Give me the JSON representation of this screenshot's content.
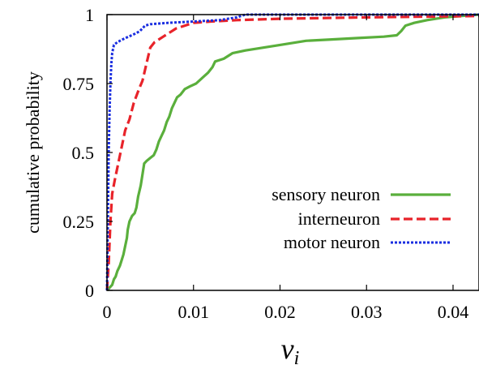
{
  "chart_data": {
    "type": "line",
    "title": "",
    "xlabel": "v",
    "xlabel_subscript": "i",
    "ylabel": "cumulative probability",
    "xlim": [
      0,
      0.043
    ],
    "ylim": [
      0,
      1
    ],
    "xticks": [
      0,
      0.01,
      0.02,
      0.03,
      0.04
    ],
    "xtick_labels": [
      "0",
      "0.01",
      "0.02",
      "0.03",
      "0.04"
    ],
    "yticks": [
      0,
      0.25,
      0.5,
      0.75,
      1
    ],
    "ytick_labels": [
      "0",
      "0.25",
      "0.5",
      "0.75",
      "1"
    ],
    "grid": false,
    "legend_position": "right",
    "series": [
      {
        "name": "sensory neuron",
        "color": "#5aaf3c",
        "style": "solid",
        "points": [
          [
            0.0,
            0.0
          ],
          [
            0.0003,
            0.01
          ],
          [
            0.0006,
            0.02
          ],
          [
            0.0008,
            0.04
          ],
          [
            0.001,
            0.05
          ],
          [
            0.0012,
            0.07
          ],
          [
            0.0015,
            0.09
          ],
          [
            0.0017,
            0.11
          ],
          [
            0.0019,
            0.13
          ],
          [
            0.0021,
            0.16
          ],
          [
            0.0023,
            0.19
          ],
          [
            0.0024,
            0.22
          ],
          [
            0.0026,
            0.25
          ],
          [
            0.0029,
            0.27
          ],
          [
            0.0032,
            0.28
          ],
          [
            0.0034,
            0.3
          ],
          [
            0.0036,
            0.34
          ],
          [
            0.0039,
            0.38
          ],
          [
            0.0041,
            0.42
          ],
          [
            0.0043,
            0.46
          ],
          [
            0.0046,
            0.47
          ],
          [
            0.005,
            0.48
          ],
          [
            0.0054,
            0.49
          ],
          [
            0.0057,
            0.51
          ],
          [
            0.006,
            0.54
          ],
          [
            0.0063,
            0.56
          ],
          [
            0.0066,
            0.58
          ],
          [
            0.0069,
            0.61
          ],
          [
            0.0072,
            0.63
          ],
          [
            0.0075,
            0.66
          ],
          [
            0.0078,
            0.68
          ],
          [
            0.0081,
            0.7
          ],
          [
            0.0085,
            0.71
          ],
          [
            0.009,
            0.73
          ],
          [
            0.0096,
            0.74
          ],
          [
            0.0103,
            0.75
          ],
          [
            0.011,
            0.77
          ],
          [
            0.0117,
            0.79
          ],
          [
            0.0122,
            0.81
          ],
          [
            0.0125,
            0.83
          ],
          [
            0.0135,
            0.84
          ],
          [
            0.0145,
            0.86
          ],
          [
            0.016,
            0.87
          ],
          [
            0.018,
            0.88
          ],
          [
            0.02,
            0.89
          ],
          [
            0.023,
            0.905
          ],
          [
            0.026,
            0.91
          ],
          [
            0.029,
            0.915
          ],
          [
            0.032,
            0.92
          ],
          [
            0.0335,
            0.925
          ],
          [
            0.034,
            0.94
          ],
          [
            0.0345,
            0.96
          ],
          [
            0.0355,
            0.97
          ],
          [
            0.037,
            0.98
          ],
          [
            0.039,
            0.99
          ],
          [
            0.041,
            0.995
          ],
          [
            0.043,
            1.0
          ]
        ]
      },
      {
        "name": "interneuron",
        "color": "#e8232a",
        "style": "dashed",
        "points": [
          [
            0.0,
            0.0
          ],
          [
            0.0002,
            0.1
          ],
          [
            0.0004,
            0.25
          ],
          [
            0.0006,
            0.35
          ],
          [
            0.0009,
            0.4
          ],
          [
            0.0013,
            0.46
          ],
          [
            0.0017,
            0.52
          ],
          [
            0.0021,
            0.58
          ],
          [
            0.0026,
            0.62
          ],
          [
            0.0031,
            0.68
          ],
          [
            0.0037,
            0.73
          ],
          [
            0.0041,
            0.76
          ],
          [
            0.0044,
            0.8
          ],
          [
            0.0047,
            0.84
          ],
          [
            0.005,
            0.88
          ],
          [
            0.0055,
            0.9
          ],
          [
            0.006,
            0.91
          ],
          [
            0.0065,
            0.92
          ],
          [
            0.007,
            0.93
          ],
          [
            0.008,
            0.95
          ],
          [
            0.009,
            0.96
          ],
          [
            0.01,
            0.97
          ],
          [
            0.012,
            0.975
          ],
          [
            0.015,
            0.98
          ],
          [
            0.02,
            0.985
          ],
          [
            0.03,
            0.99
          ],
          [
            0.043,
            0.995
          ]
        ]
      },
      {
        "name": "motor neuron",
        "color": "#1a2ee0",
        "style": "dotted",
        "points": [
          [
            0.0,
            0.0
          ],
          [
            0.0001,
            0.25
          ],
          [
            0.0002,
            0.5
          ],
          [
            0.0003,
            0.65
          ],
          [
            0.0004,
            0.75
          ],
          [
            0.0005,
            0.82
          ],
          [
            0.0006,
            0.86
          ],
          [
            0.0008,
            0.89
          ],
          [
            0.0012,
            0.9
          ],
          [
            0.0018,
            0.91
          ],
          [
            0.0025,
            0.92
          ],
          [
            0.0032,
            0.93
          ],
          [
            0.0038,
            0.94
          ],
          [
            0.0044,
            0.96
          ],
          [
            0.005,
            0.965
          ],
          [
            0.007,
            0.97
          ],
          [
            0.01,
            0.975
          ],
          [
            0.013,
            0.98
          ],
          [
            0.015,
            0.99
          ],
          [
            0.016,
            1.0
          ],
          [
            0.043,
            1.0
          ]
        ]
      }
    ]
  }
}
